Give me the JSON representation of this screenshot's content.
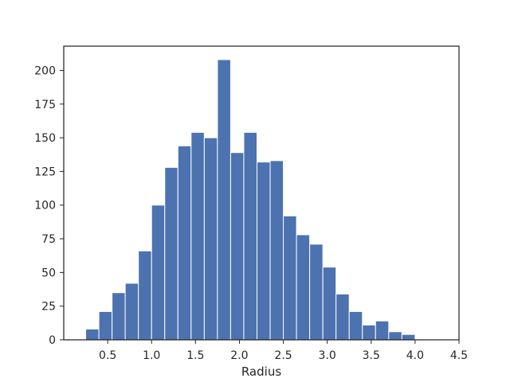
{
  "chart_data": {
    "type": "bar",
    "title": "",
    "xlabel": "Radius",
    "ylabel": "",
    "xlim": [
      0.0,
      4.5
    ],
    "ylim": [
      0,
      218
    ],
    "xticks": [
      0.5,
      1.0,
      1.5,
      2.0,
      2.5,
      3.0,
      3.5,
      4.0,
      4.5
    ],
    "xtick_labels": [
      "0.5",
      "1.0",
      "1.5",
      "2.0",
      "2.5",
      "3.0",
      "3.5",
      "4.0",
      "4.5"
    ],
    "yticks": [
      0,
      25,
      50,
      75,
      100,
      125,
      150,
      175,
      200
    ],
    "ytick_labels": [
      "0",
      "25",
      "50",
      "75",
      "100",
      "125",
      "150",
      "175",
      "200"
    ],
    "bar_color": "#4c72b0",
    "grid": false,
    "bins": [
      {
        "start": 0.25,
        "end": 0.4,
        "count": 8
      },
      {
        "start": 0.4,
        "end": 0.55,
        "count": 21
      },
      {
        "start": 0.55,
        "end": 0.7,
        "count": 35
      },
      {
        "start": 0.7,
        "end": 0.85,
        "count": 42
      },
      {
        "start": 0.85,
        "end": 1.0,
        "count": 66
      },
      {
        "start": 1.0,
        "end": 1.15,
        "count": 100
      },
      {
        "start": 1.15,
        "end": 1.3,
        "count": 128
      },
      {
        "start": 1.3,
        "end": 1.45,
        "count": 144
      },
      {
        "start": 1.45,
        "end": 1.6,
        "count": 154
      },
      {
        "start": 1.6,
        "end": 1.75,
        "count": 150
      },
      {
        "start": 1.75,
        "end": 1.9,
        "count": 208
      },
      {
        "start": 1.9,
        "end": 2.05,
        "count": 139
      },
      {
        "start": 2.05,
        "end": 2.2,
        "count": 154
      },
      {
        "start": 2.2,
        "end": 2.35,
        "count": 132
      },
      {
        "start": 2.35,
        "end": 2.5,
        "count": 133
      },
      {
        "start": 2.5,
        "end": 2.65,
        "count": 92
      },
      {
        "start": 2.65,
        "end": 2.8,
        "count": 78
      },
      {
        "start": 2.8,
        "end": 2.95,
        "count": 71
      },
      {
        "start": 2.95,
        "end": 3.1,
        "count": 54
      },
      {
        "start": 3.1,
        "end": 3.25,
        "count": 34
      },
      {
        "start": 3.25,
        "end": 3.4,
        "count": 21
      },
      {
        "start": 3.4,
        "end": 3.55,
        "count": 11
      },
      {
        "start": 3.55,
        "end": 3.7,
        "count": 14
      },
      {
        "start": 3.7,
        "end": 3.85,
        "count": 6
      },
      {
        "start": 3.85,
        "end": 4.0,
        "count": 4
      },
      {
        "start": 4.0,
        "end": 4.15,
        "count": 0
      },
      {
        "start": 4.15,
        "end": 4.3,
        "count": 0
      }
    ]
  }
}
